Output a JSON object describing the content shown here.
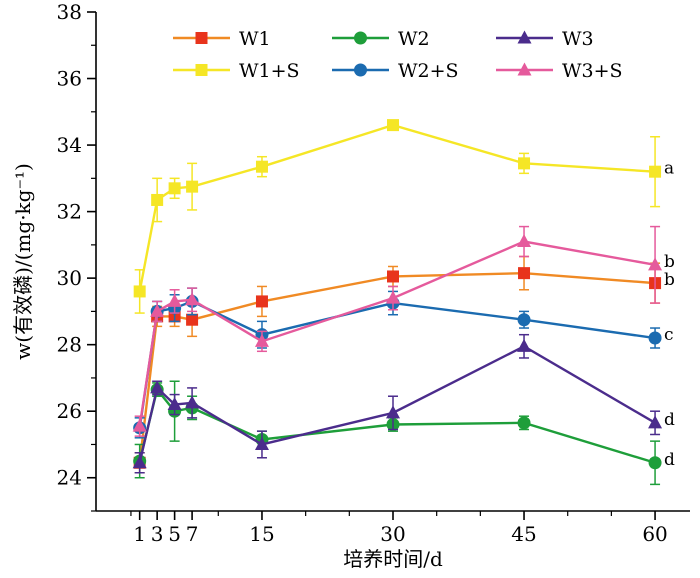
{
  "chart_data": {
    "type": "line",
    "title": "",
    "xlabel": "培养时间/d",
    "ylabel": "w(有效磷)/(mg·kg⁻¹)",
    "x": [
      1,
      3,
      5,
      7,
      15,
      30,
      45,
      60
    ],
    "x_ticks": [
      1,
      3,
      5,
      7,
      15,
      30,
      45,
      60
    ],
    "x_tick_labels": [
      "1",
      "3",
      "5",
      "7",
      "15",
      "30",
      "45",
      "60"
    ],
    "xlim": [
      -4,
      64
    ],
    "ylim": [
      23,
      38
    ],
    "y_ticks": [
      24,
      26,
      28,
      30,
      32,
      34,
      36,
      38
    ],
    "y_tick_labels": [
      "24",
      "26",
      "28",
      "30",
      "32",
      "34",
      "36",
      "38"
    ],
    "grid": false,
    "legend": "top-center",
    "series": [
      {
        "name": "W1",
        "color": "#F08A24",
        "marker": "square",
        "marker_color": "#E8341C",
        "values": [
          24.45,
          28.85,
          28.85,
          28.75,
          29.3,
          30.05,
          30.15,
          29.85
        ],
        "errors": [
          0.3,
          0.3,
          0.3,
          0.5,
          0.45,
          0.3,
          0.5,
          0.6
        ]
      },
      {
        "name": "W2",
        "color": "#1E9E3A",
        "marker": "circle",
        "marker_color": "#1E9E3A",
        "values": [
          24.5,
          26.65,
          26.0,
          26.1,
          25.15,
          25.6,
          25.65,
          24.45
        ],
        "errors": [
          0.5,
          0.2,
          0.9,
          0.35,
          0.25,
          0.2,
          0.2,
          0.65
        ]
      },
      {
        "name": "W3",
        "color": "#4B2C8C",
        "marker": "triangle",
        "marker_color": "#4B2C8C",
        "values": [
          24.45,
          26.7,
          26.2,
          26.25,
          25.0,
          25.95,
          27.95,
          25.65
        ],
        "errors": [
          0.3,
          0.2,
          0.3,
          0.45,
          0.4,
          0.5,
          0.35,
          0.35
        ]
      },
      {
        "name": "W1+S",
        "color": "#F5E626",
        "marker": "square",
        "marker_color": "#F5E626",
        "values": [
          29.6,
          32.35,
          32.7,
          32.75,
          33.35,
          34.6,
          33.45,
          33.2
        ],
        "errors": [
          0.65,
          0.65,
          0.3,
          0.7,
          0.3,
          0.1,
          0.3,
          1.05
        ]
      },
      {
        "name": "W2+S",
        "color": "#1B6BB0",
        "marker": "circle",
        "marker_color": "#1B6BB0",
        "values": [
          25.5,
          29.0,
          29.1,
          29.3,
          28.3,
          29.25,
          28.75,
          28.2
        ],
        "errors": [
          0.3,
          0.3,
          0.4,
          0.4,
          0.4,
          0.35,
          0.25,
          0.3
        ]
      },
      {
        "name": "W3+S",
        "color": "#E55A9C",
        "marker": "triangle",
        "marker_color": "#E55A9C",
        "values": [
          25.55,
          29.0,
          29.3,
          29.35,
          28.1,
          29.4,
          31.1,
          30.4
        ],
        "errors": [
          0.3,
          0.3,
          0.35,
          0.35,
          0.3,
          0.35,
          0.45,
          1.15
        ]
      }
    ],
    "annotations": [
      {
        "series": "W1+S",
        "text": "a"
      },
      {
        "series": "W3+S",
        "text": "b"
      },
      {
        "series": "W1",
        "text": "b"
      },
      {
        "series": "W2+S",
        "text": "c"
      },
      {
        "series": "W3",
        "text": "d"
      },
      {
        "series": "W2",
        "text": "d"
      }
    ]
  }
}
